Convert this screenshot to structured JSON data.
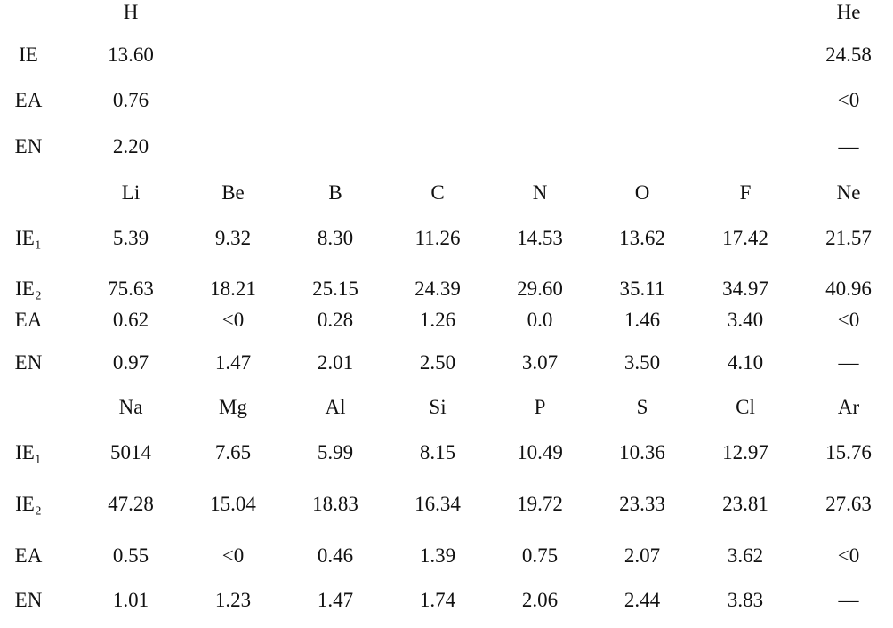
{
  "sections": [
    {
      "elements": [
        "H",
        "He"
      ],
      "rows": [
        {
          "label": "IE",
          "values": [
            "13.60",
            "24.58"
          ]
        },
        {
          "label": "EA",
          "values": [
            "0.76",
            "<0"
          ]
        },
        {
          "label": "EN",
          "values": [
            "2.20",
            "—"
          ]
        }
      ]
    },
    {
      "elements": [
        "Li",
        "Be",
        "B",
        "C",
        "N",
        "O",
        "F",
        "Ne"
      ],
      "rows": [
        {
          "label": "IE₁",
          "values": [
            "5.39",
            "9.32",
            "8.30",
            "11.26",
            "14.53",
            "13.62",
            "17.42",
            "21.57"
          ]
        },
        {
          "label": "IE₂",
          "values": [
            "75.63",
            "18.21",
            "25.15",
            "24.39",
            "29.60",
            "35.11",
            "34.97",
            "40.96"
          ]
        },
        {
          "label": "EA",
          "values": [
            "0.62",
            "<0",
            "0.28",
            "1.26",
            "0.0",
            "1.46",
            "3.40",
            "<0"
          ]
        },
        {
          "label": "EN",
          "values": [
            "0.97",
            "1.47",
            "2.01",
            "2.50",
            "3.07",
            "3.50",
            "4.10",
            "—"
          ]
        }
      ]
    },
    {
      "elements": [
        "Na",
        "Mg",
        "Al",
        "Si",
        "P",
        "S",
        "Cl",
        "Ar"
      ],
      "rows": [
        {
          "label": "IE₁",
          "values": [
            "5014",
            "7.65",
            "5.99",
            "8.15",
            "10.49",
            "10.36",
            "12.97",
            "15.76"
          ]
        },
        {
          "label": "IE₂",
          "values": [
            "47.28",
            "15.04",
            "18.83",
            "16.34",
            "19.72",
            "23.33",
            "23.81",
            "27.63"
          ]
        },
        {
          "label": "EA",
          "values": [
            "0.55",
            "<0",
            "0.46",
            "1.39",
            "0.75",
            "2.07",
            "3.62",
            "<0"
          ]
        },
        {
          "label": "EN",
          "values": [
            "1.01",
            "1.23",
            "1.47",
            "1.74",
            "2.06",
            "2.44",
            "3.83",
            "—"
          ]
        }
      ]
    }
  ]
}
